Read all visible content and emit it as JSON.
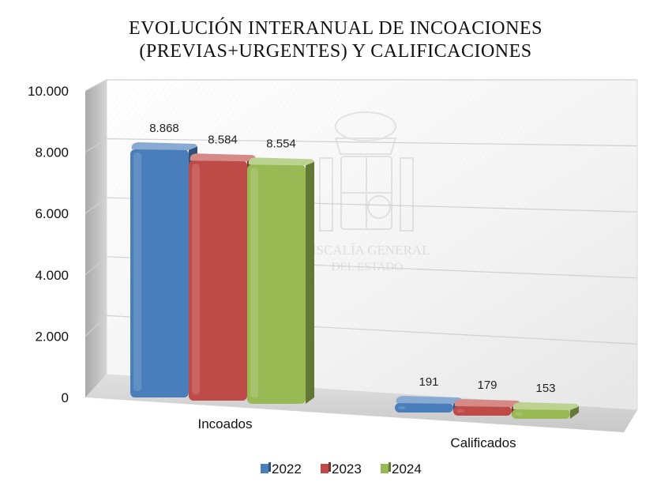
{
  "chart_data": {
    "type": "bar",
    "title_lines": [
      "EVOLUCIÓN INTERANUAL DE INCOACIONES",
      "(PREVIAS+URGENTES) Y CALIFICACIONES"
    ],
    "categories": [
      "Incoados",
      "Calificados"
    ],
    "series": [
      {
        "name": "2022",
        "values": [
          8868,
          191
        ],
        "labels": [
          "8.868",
          "191"
        ],
        "color": "#4a7ebb"
      },
      {
        "name": "2023",
        "values": [
          8584,
          179
        ],
        "labels": [
          "8.584",
          "179"
        ],
        "color": "#be4b48"
      },
      {
        "name": "2024",
        "values": [
          8554,
          153
        ],
        "labels": [
          "8.554",
          "153"
        ],
        "color": "#98b954"
      }
    ],
    "ylim": [
      0,
      10000
    ],
    "yticks": [
      {
        "value": 0,
        "label": "0"
      },
      {
        "value": 2000,
        "label": "2.000"
      },
      {
        "value": 4000,
        "label": "4.000"
      },
      {
        "value": 6000,
        "label": "6.000"
      },
      {
        "value": 8000,
        "label": "8.000"
      },
      {
        "value": 10000,
        "label": "10.000"
      }
    ],
    "xlabel": "",
    "ylabel": "",
    "grid": true,
    "legend_position": "bottom",
    "style": "3d-column",
    "watermark": {
      "kind": "emblem",
      "lines": [
        "FISCALÍA GENERAL",
        "DEL ESTADO"
      ]
    }
  }
}
